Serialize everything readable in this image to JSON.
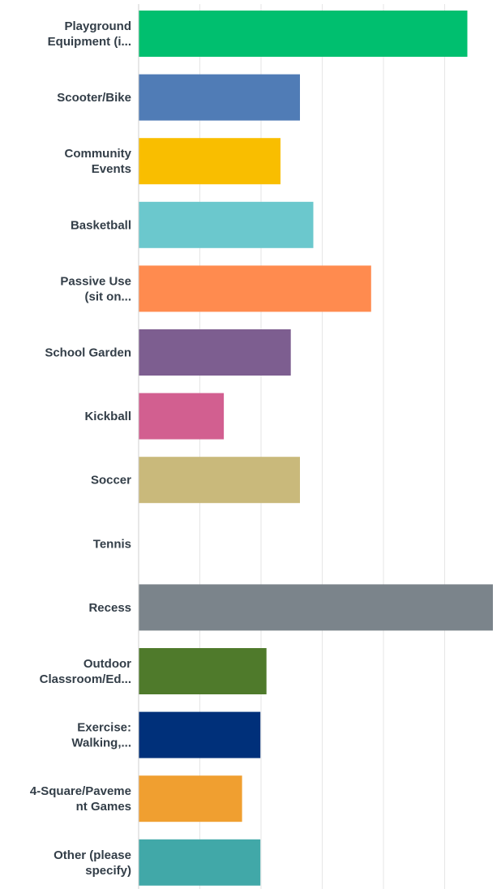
{
  "chart_data": {
    "type": "bar",
    "orientation": "horizontal",
    "categories": [
      [
        "Playground",
        "Equipment (i..."
      ],
      [
        "Scooter/Bike"
      ],
      [
        "Community",
        "Events"
      ],
      [
        "Basketball"
      ],
      [
        "Passive Use",
        "(sit on..."
      ],
      [
        "School Garden"
      ],
      [
        "Kickball"
      ],
      [
        "Soccer"
      ],
      [
        "Tennis"
      ],
      [
        "Recess"
      ],
      [
        "Outdoor",
        "Classroom/Ed..."
      ],
      [
        "Exercise:",
        "Walking,..."
      ],
      [
        "4-Square/Paveme",
        "nt Games"
      ],
      [
        "Other (please",
        "specify)"
      ]
    ],
    "values": [
      54,
      26.5,
      23.3,
      28.7,
      38.2,
      25,
      14,
      26.5,
      0,
      58.2,
      21,
      20,
      17,
      20
    ],
    "colors": [
      "#00bf6f",
      "#507cb6",
      "#f9be00",
      "#6bc8cd",
      "#ff8b4f",
      "#7d5e90",
      "#d25f90",
      "#c9b97b",
      "#a7a7a7",
      "#7b848b",
      "#4f7a2b",
      "#00307a",
      "#f09f30",
      "#41a8a8"
    ],
    "xlim": [
      0,
      58.2
    ],
    "grid": true,
    "title": "",
    "xlabel": "",
    "ylabel": ""
  }
}
